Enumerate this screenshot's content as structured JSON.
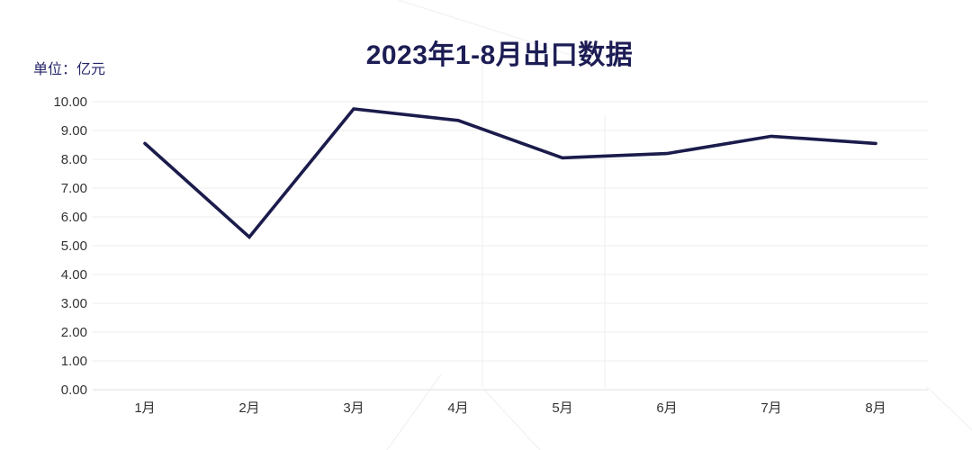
{
  "chart": {
    "title": "2023年1-8月出口数据",
    "unit_label": "单位：亿元"
  },
  "chart_data": {
    "type": "line",
    "title": "2023年1-8月出口数据",
    "subtitle": "单位：亿元",
    "categories": [
      "1月",
      "2月",
      "3月",
      "4月",
      "5月",
      "6月",
      "7月",
      "8月"
    ],
    "series": [
      {
        "name": "出口数据",
        "values": [
          8.55,
          5.3,
          9.75,
          9.35,
          8.05,
          8.2,
          8.8,
          8.55
        ]
      }
    ],
    "xlabel": "",
    "ylabel": "亿元",
    "ylim": [
      0,
      10
    ],
    "ytick_interval": 1,
    "ytick_decimals": 2,
    "grid": true,
    "legend": "none"
  },
  "colors": {
    "line": "#1b1b4c",
    "title_text": "#1d1d55",
    "unit_text": "#26266b",
    "tick_label": "#333333",
    "grid_line": "#ededed",
    "axis_line": "#e0e0e0",
    "watermark": "#f1f1f1",
    "background": "#ffffff"
  }
}
